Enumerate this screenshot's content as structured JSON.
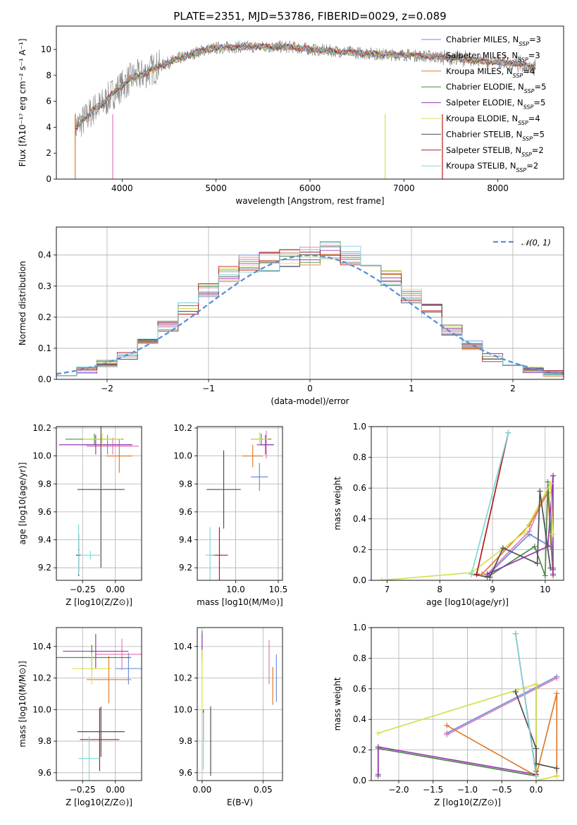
{
  "title": "PLATE=2351, MJD=53786, FIBERID=0029, z=0.089",
  "colors": [
    "#6e8fdc",
    "#e07cb4",
    "#e07b2b",
    "#4e8a47",
    "#9b38b6",
    "#d6e050",
    "#505050",
    "#b51c1c",
    "#7fd8dc"
  ],
  "chart_data": [
    {
      "id": "spectrum",
      "type": "line",
      "title": "PLATE=2351, MJD=53786, FIBERID=0029, z=0.089",
      "xlabel": "wavelength [Angstrom, rest frame]",
      "ylabel": "Flux [fλ10⁻¹⁷ erg cm⁻² s⁻¹ A⁻¹]",
      "xlim": [
        3300,
        8700
      ],
      "ylim": [
        0,
        11.8
      ],
      "xticks": [
        "4000",
        "5000",
        "6000",
        "7000",
        "8000"
      ],
      "yticks": [
        "0",
        "2",
        "4",
        "6",
        "8",
        "10"
      ],
      "grid": false,
      "legend_position": "right",
      "legend": [
        "Chabrier MILES, NSSP=3",
        "Salpeter MILES, NSSP=3",
        "Kroupa MILES, NSSP=4",
        "Chabrier ELODIE, NSSP=5",
        "Salpeter ELODIE, NSSP=5",
        "Kroupa ELODIE, NSSP=4",
        "Chabrier STELIB, NSSP=5",
        "Salpeter STELIB, NSSP=2",
        "Kroupa STELIB, NSSP=2"
      ],
      "continuum": {
        "x": [
          3500,
          3600,
          3700,
          3800,
          3900,
          4000,
          4100,
          4200,
          4300,
          4400,
          4500,
          4600,
          4700,
          4800,
          4900,
          5000,
          5200,
          5400,
          5600,
          5800,
          6000,
          6200,
          6400,
          6600,
          6800,
          7000,
          7200,
          7400,
          7600,
          7800,
          8000,
          8200,
          8400
        ],
        "y": [
          4.0,
          4.6,
          5.4,
          5.8,
          6.6,
          7.2,
          7.8,
          8.0,
          8.4,
          8.7,
          9.0,
          9.3,
          9.5,
          9.8,
          10.0,
          10.1,
          10.2,
          10.2,
          10.2,
          10.2,
          10.0,
          9.9,
          9.8,
          9.7,
          9.6,
          9.6,
          9.5,
          9.4,
          9.3,
          9.1,
          9.0,
          8.9,
          8.6
        ]
      }
    },
    {
      "id": "residuals",
      "type": "histogram",
      "xlabel": "(data-model)/error",
      "ylabel": "Normed distribution",
      "xlim": [
        -2.5,
        2.5
      ],
      "ylim": [
        0,
        0.49
      ],
      "xticks": [
        "−2",
        "−1",
        "0",
        "1",
        "2"
      ],
      "yticks": [
        "0.0",
        "0.1",
        "0.2",
        "0.3",
        "0.4"
      ],
      "grid": true,
      "legend_position": "top-right",
      "legend": "𝒩(0, 1)",
      "bin_edges": [
        -2.5,
        -2.3,
        -2.1,
        -1.9,
        -1.7,
        -1.5,
        -1.3,
        -1.1,
        -0.9,
        -0.7,
        -0.5,
        -0.3,
        -0.1,
        0.1,
        0.3,
        0.5,
        0.7,
        0.9,
        1.1,
        1.3,
        1.5,
        1.7,
        1.9,
        2.1,
        2.3,
        2.5
      ],
      "density_approx": [
        0.022,
        0.031,
        0.05,
        0.078,
        0.115,
        0.17,
        0.23,
        0.29,
        0.34,
        0.37,
        0.38,
        0.39,
        0.4,
        0.42,
        0.4,
        0.37,
        0.33,
        0.27,
        0.22,
        0.16,
        0.11,
        0.07,
        0.05,
        0.03,
        0.02
      ]
    },
    {
      "id": "age-vs-Z",
      "type": "scatter",
      "xlabel": "Z [log10(Z/Z⊙)]",
      "ylabel": "age  [log10(age/yr)]",
      "xlim": [
        -0.45,
        0.2
      ],
      "ylim": [
        9.11,
        10.21
      ],
      "xticks": [
        "−0.25",
        "0.00"
      ],
      "yticks": [
        "9.2",
        "9.4",
        "9.6",
        "9.8",
        "10.0",
        "10.2"
      ],
      "grid": true,
      "points": [
        {
          "x": -0.06,
          "y": 10.08,
          "xerr": 0.18,
          "yerr": 0.07,
          "color": 0
        },
        {
          "x": -0.02,
          "y": 10.07,
          "xerr": 0.2,
          "yerr": 0.06,
          "color": 1
        },
        {
          "x": 0.03,
          "y": 10.0,
          "xerr": 0.1,
          "yerr": 0.12,
          "color": 2
        },
        {
          "x": -0.16,
          "y": 10.12,
          "xerr": 0.22,
          "yerr": 0.04,
          "color": 3
        },
        {
          "x": -0.15,
          "y": 10.08,
          "xerr": 0.28,
          "yerr": 0.07,
          "color": 4
        },
        {
          "x": -0.1,
          "y": 10.12,
          "xerr": 0.15,
          "yerr": 0.04,
          "color": 5
        },
        {
          "x": -0.11,
          "y": 9.76,
          "xerr": 0.18,
          "yerr": 0.56,
          "color": 6
        },
        {
          "x": -0.28,
          "y": 9.29,
          "xerr": 0.02,
          "yerr": 0.15,
          "color": 7
        },
        {
          "x": -0.19,
          "y": 9.29,
          "xerr": 0.08,
          "yerr": 0.03,
          "color": 8
        },
        {
          "x": -0.28,
          "y": 9.33,
          "xerr": 0.01,
          "yerr": 0.18,
          "color": 8
        }
      ]
    },
    {
      "id": "age-vs-mass",
      "type": "scatter",
      "xlabel": "mass [log10(M/M⊙)]",
      "ylabel": "",
      "xlim": [
        9.55,
        10.55
      ],
      "ylim": [
        9.11,
        10.21
      ],
      "xticks": [
        "9.0",
        "9.5",
        "10.0",
        "10.5"
      ],
      "yticks": [
        "9.2",
        "9.4",
        "9.6",
        "9.8",
        "10.0",
        "10.2"
      ],
      "grid": true,
      "points": [
        {
          "x": 10.28,
          "y": 9.85,
          "xerr": 0.1,
          "yerr": 0.1,
          "color": 0
        },
        {
          "x": 10.36,
          "y": 10.08,
          "xerr": 0.08,
          "yerr": 0.1,
          "color": 1
        },
        {
          "x": 10.2,
          "y": 10.0,
          "xerr": 0.12,
          "yerr": 0.08,
          "color": 2
        },
        {
          "x": 10.3,
          "y": 10.12,
          "xerr": 0.12,
          "yerr": 0.04,
          "color": 3
        },
        {
          "x": 10.35,
          "y": 10.08,
          "xerr": 0.1,
          "yerr": 0.07,
          "color": 4
        },
        {
          "x": 10.28,
          "y": 10.12,
          "xerr": 0.1,
          "yerr": 0.05,
          "color": 5
        },
        {
          "x": 9.86,
          "y": 9.76,
          "xerr": 0.2,
          "yerr": 0.28,
          "color": 6
        },
        {
          "x": 9.81,
          "y": 9.29,
          "xerr": 0.1,
          "yerr": 0.2,
          "color": 7
        },
        {
          "x": 9.7,
          "y": 9.29,
          "xerr": 0.05,
          "yerr": 0.2,
          "color": 8
        }
      ]
    },
    {
      "id": "weight-vs-age",
      "type": "line",
      "xlabel": "age  [log10(age/yr)]",
      "ylabel": "mass weight",
      "xlim": [
        6.7,
        10.35
      ],
      "ylim": [
        0,
        1
      ],
      "xticks": [
        "7",
        "8",
        "9",
        "10"
      ],
      "yticks": [
        "0.0",
        "0.2",
        "0.4",
        "0.6",
        "0.8",
        "1.0"
      ],
      "grid": true,
      "series": [
        {
          "color": 0,
          "x": [
            8.9,
            9.7,
            10.1,
            10.15
          ],
          "y": [
            0.03,
            0.3,
            0.22,
            0.68
          ]
        },
        {
          "color": 1,
          "x": [
            8.9,
            9.7,
            10.05,
            10.15
          ],
          "y": [
            0.04,
            0.32,
            0.6,
            0.03
          ]
        },
        {
          "color": 2,
          "x": [
            8.8,
            9.7,
            10.05,
            10.15
          ],
          "y": [
            0.04,
            0.36,
            0.57,
            0.03
          ]
        },
        {
          "color": 3,
          "x": [
            8.9,
            9.8,
            10.0,
            10.05,
            10.15
          ],
          "y": [
            0.02,
            0.22,
            0.03,
            0.64,
            0.07
          ]
        },
        {
          "color": 4,
          "x": [
            8.9,
            10.05,
            10.15,
            10.15,
            10.15
          ],
          "y": [
            0.04,
            0.22,
            0.68,
            0.04,
            0.08
          ]
        },
        {
          "color": 5,
          "x": [
            6.9,
            8.6,
            9.6,
            10.1,
            10.15
          ],
          "y": [
            0.0,
            0.05,
            0.31,
            0.63,
            0.3
          ]
        },
        {
          "color": 6,
          "x": [
            8.6,
            8.95,
            9.2,
            9.85,
            9.9,
            10.1
          ],
          "y": [
            0.04,
            0.02,
            0.21,
            0.11,
            0.58,
            0.08
          ]
        },
        {
          "color": 7,
          "x": [
            8.7,
            9.3
          ],
          "y": [
            0.04,
            0.96
          ]
        },
        {
          "color": 8,
          "x": [
            8.6,
            9.3
          ],
          "y": [
            0.04,
            0.96
          ]
        }
      ]
    },
    {
      "id": "mass-vs-Z",
      "type": "scatter",
      "xlabel": "Z [log10(Z/Z⊙)]",
      "ylabel": "mass [log10(M/M⊙)]",
      "xlim": [
        -0.45,
        0.2
      ],
      "ylim": [
        9.55,
        10.52
      ],
      "xticks": [
        "−0.25",
        "0.00"
      ],
      "yticks": [
        "9.6",
        "9.8",
        "10.0",
        "10.2",
        "10.4"
      ],
      "grid": true,
      "points": [
        {
          "x": 0.1,
          "y": 10.26,
          "xerr": 0.1,
          "yerr": 0.1,
          "color": 0
        },
        {
          "x": 0.05,
          "y": 10.35,
          "xerr": 0.2,
          "yerr": 0.1,
          "color": 1
        },
        {
          "x": -0.05,
          "y": 10.19,
          "xerr": 0.17,
          "yerr": 0.15,
          "color": 2
        },
        {
          "x": -0.18,
          "y": 10.33,
          "xerr": 0.3,
          "yerr": 0.08,
          "color": 3
        },
        {
          "x": -0.15,
          "y": 10.37,
          "xerr": 0.25,
          "yerr": 0.11,
          "color": 4
        },
        {
          "x": -0.18,
          "y": 10.26,
          "xerr": 0.15,
          "yerr": 0.1,
          "color": 5
        },
        {
          "x": -0.11,
          "y": 9.86,
          "xerr": 0.18,
          "yerr": 0.16,
          "color": 6
        },
        {
          "x": -0.12,
          "y": 9.81,
          "xerr": 0.15,
          "yerr": 0.2,
          "color": 7
        },
        {
          "x": -0.2,
          "y": 9.69,
          "xerr": 0.08,
          "yerr": 0.14,
          "color": 8
        }
      ]
    },
    {
      "id": "mass-vs-EBV",
      "type": "scatter",
      "xlabel": "E(B-V)",
      "ylabel": "",
      "xlim": [
        -0.004,
        0.066
      ],
      "ylim": [
        9.55,
        10.52
      ],
      "xticks": [
        "0.00",
        "0.05"
      ],
      "yticks": [
        "9.6",
        "9.8",
        "10.0",
        "10.2",
        "10.4"
      ],
      "grid": true,
      "points": [
        {
          "x": 0.061,
          "y": 10.2,
          "yerr": 0.15,
          "color": 0
        },
        {
          "x": 0.055,
          "y": 10.3,
          "yerr": 0.14,
          "color": 1
        },
        {
          "x": 0.058,
          "y": 10.15,
          "yerr": 0.12,
          "color": 2
        },
        {
          "x": 0.0,
          "y": 10.4,
          "yerr": 0.1,
          "color": 3
        },
        {
          "x": 0.0,
          "y": 10.4,
          "yerr": 0.08,
          "color": 4
        },
        {
          "x": 0.0,
          "y": 10.18,
          "yerr": 0.2,
          "color": 5
        },
        {
          "x": 0.007,
          "y": 9.8,
          "yerr": 0.22,
          "color": 6
        },
        {
          "x": 0.001,
          "y": 9.9,
          "yerr": 0.1,
          "color": 7
        },
        {
          "x": 0.001,
          "y": 9.8,
          "yerr": 0.18,
          "color": 8
        }
      ]
    },
    {
      "id": "weight-vs-Z",
      "type": "line",
      "xlabel": "Z [log10(Z/Z⊙)]",
      "ylabel": "mass weight",
      "xlim": [
        -2.4,
        0.4
      ],
      "ylim": [
        0,
        1
      ],
      "xticks": [
        "−2.0",
        "−1.5",
        "−1.0",
        "−0.5",
        "0.0"
      ],
      "yticks": [
        "0.0",
        "0.2",
        "0.4",
        "0.6",
        "0.8",
        "1.0"
      ],
      "grid": true,
      "series": [
        {
          "color": 0,
          "x": [
            -1.3,
            0.3
          ],
          "y": [
            0.31,
            0.68
          ]
        },
        {
          "color": 1,
          "x": [
            -1.3,
            0.3
          ],
          "y": [
            0.3,
            0.67
          ]
        },
        {
          "color": 2,
          "x": [
            -1.3,
            0.0,
            0.3,
            0.3
          ],
          "y": [
            0.36,
            0.03,
            0.57,
            0.03
          ]
        },
        {
          "color": 3,
          "x": [
            -2.3,
            -2.3,
            0.0,
            0.0
          ],
          "y": [
            0.03,
            0.21,
            0.03,
            0.63
          ]
        },
        {
          "color": 4,
          "x": [
            -2.3,
            -2.3,
            0.0,
            0.0
          ],
          "y": [
            0.04,
            0.22,
            0.04,
            0.06
          ]
        },
        {
          "color": 5,
          "x": [
            -2.3,
            0.0,
            0.0,
            0.3
          ],
          "y": [
            0.31,
            0.63,
            0.0,
            0.03
          ]
        },
        {
          "color": 6,
          "x": [
            -0.3,
            0.0,
            0.0,
            0.3
          ],
          "y": [
            0.58,
            0.21,
            0.11,
            0.08
          ]
        },
        {
          "color": 7,
          "x": [
            -0.3,
            0.0
          ],
          "y": [
            0.96,
            0.04
          ]
        },
        {
          "color": 8,
          "x": [
            -0.3,
            0.0
          ],
          "y": [
            0.96,
            0.03
          ]
        }
      ]
    }
  ]
}
